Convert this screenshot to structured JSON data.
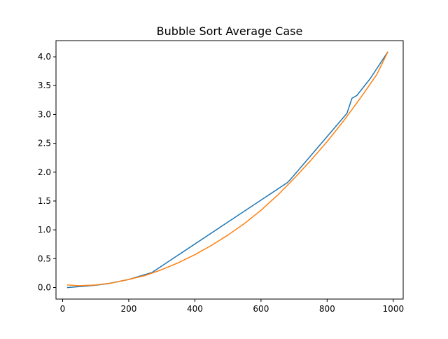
{
  "chart_data": {
    "type": "line",
    "title": "Bubble Sort Average Case",
    "xlabel": "",
    "ylabel": "",
    "xlim": [
      -20,
      1030
    ],
    "ylim": [
      -0.2,
      4.28
    ],
    "xticks": [
      0,
      200,
      400,
      600,
      800,
      1000
    ],
    "xtick_labels": [
      "0",
      "200",
      "400",
      "600",
      "800",
      "1000"
    ],
    "yticks": [
      0.0,
      0.5,
      1.0,
      1.5,
      2.0,
      2.5,
      3.0,
      3.5,
      4.0
    ],
    "ytick_labels": [
      "0.0",
      "0.5",
      "1.0",
      "1.5",
      "2.0",
      "2.5",
      "3.0",
      "3.5",
      "4.0"
    ],
    "grid": false,
    "legend": "none",
    "series": [
      {
        "color": "#1f77b4",
        "x": [
          15,
          100,
          140,
          200,
          270,
          680,
          690,
          860,
          875,
          890,
          930,
          983
        ],
        "y": [
          0.0,
          0.04,
          0.07,
          0.14,
          0.26,
          1.82,
          1.88,
          3.02,
          3.28,
          3.33,
          3.62,
          4.08
        ]
      },
      {
        "color": "#ff7f0e",
        "x": [
          15,
          50,
          100,
          150,
          200,
          250,
          300,
          350,
          400,
          450,
          500,
          550,
          600,
          650,
          700,
          750,
          800,
          850,
          900,
          950,
          983
        ],
        "y": [
          0.045,
          0.03,
          0.045,
          0.08,
          0.14,
          0.21,
          0.31,
          0.43,
          0.57,
          0.73,
          0.91,
          1.11,
          1.34,
          1.6,
          1.89,
          2.2,
          2.53,
          2.89,
          3.28,
          3.69,
          4.08
        ]
      }
    ]
  }
}
